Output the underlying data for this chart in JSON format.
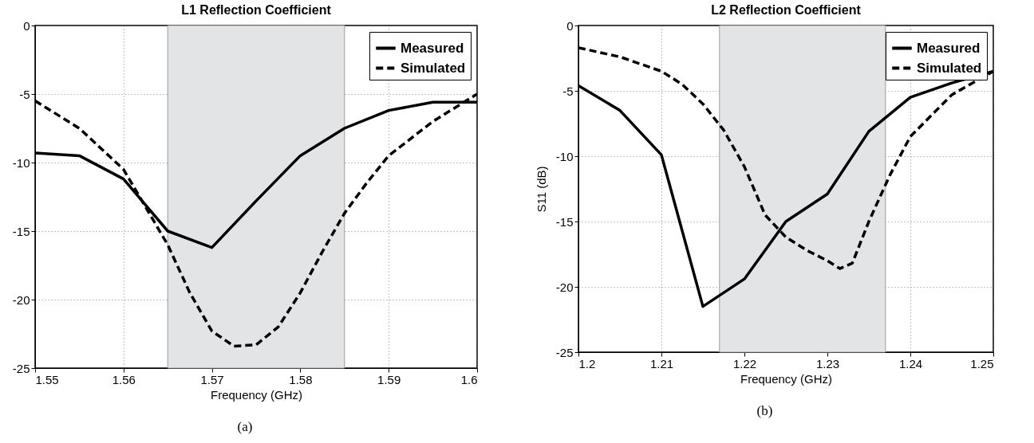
{
  "chart_data": [
    {
      "type": "line",
      "title": "L1 Reflection Coefficient",
      "xlabel": "Frequency (GHz)",
      "annotations": [
        "(a)"
      ],
      "xlim": [
        1.55,
        1.6
      ],
      "xticks": [
        1.55,
        1.56,
        1.57,
        1.58,
        1.59,
        1.6
      ],
      "ylim": [
        -25,
        0
      ],
      "yticks": [
        -25,
        -20,
        -15,
        -10,
        -5,
        0
      ],
      "grid": true,
      "legend": "top right",
      "marker": "none",
      "bands": [
        {
          "axis": "x",
          "from": 1.565,
          "to": 1.585,
          "color": "#e3e4e6"
        }
      ],
      "series": [
        {
          "name": "Measured",
          "color": "#000000",
          "line_style": "solid",
          "x": [
            1.55,
            1.555,
            1.56,
            1.565,
            1.57,
            1.575,
            1.58,
            1.585,
            1.59,
            1.595,
            1.6
          ],
          "values": [
            -9.3,
            -9.5,
            -11.2,
            -15,
            -16.2,
            -12.8,
            -9.5,
            -7.5,
            -6.2,
            -5.6,
            -5.6
          ]
        },
        {
          "name": "Simulated",
          "color": "#000000",
          "line_style": "dashed",
          "x": [
            1.55,
            1.555,
            1.56,
            1.565,
            1.5675,
            1.57,
            1.5725,
            1.575,
            1.5775,
            1.58,
            1.5825,
            1.585,
            1.5875,
            1.59,
            1.595,
            1.6
          ],
          "values": [
            -5.5,
            -7.5,
            -10.5,
            -16,
            -19.5,
            -22.3,
            -23.4,
            -23.3,
            -22,
            -19.5,
            -16.5,
            -13.7,
            -11.5,
            -9.5,
            -7,
            -5
          ]
        }
      ]
    },
    {
      "type": "line",
      "title": "L2 Reflection Coefficient",
      "xlabel": "Frequency (GHz)",
      "ylabel": "S11 (dB)",
      "annotations": [
        "(b)"
      ],
      "xlim": [
        1.2,
        1.25
      ],
      "xticks": [
        1.2,
        1.21,
        1.22,
        1.23,
        1.24,
        1.25
      ],
      "ylim": [
        -25,
        0
      ],
      "yticks": [
        -25,
        -20,
        -15,
        -10,
        -5,
        0
      ],
      "grid": true,
      "legend": "top right",
      "marker": "none",
      "bands": [
        {
          "axis": "x",
          "from": 1.217,
          "to": 1.237,
          "color": "#e3e4e6"
        }
      ],
      "series": [
        {
          "name": "Measured",
          "color": "#000000",
          "line_style": "solid",
          "x": [
            1.2,
            1.205,
            1.21,
            1.215,
            1.22,
            1.225,
            1.23,
            1.235,
            1.24,
            1.245,
            1.25
          ],
          "values": [
            -4.6,
            -6.5,
            -9.9,
            -21.5,
            -19.4,
            -15,
            -12.9,
            -8.1,
            -5.5,
            -4.4,
            -3.5
          ]
        },
        {
          "name": "Simulated",
          "color": "#000000",
          "line_style": "dashed",
          "x": [
            1.2,
            1.205,
            1.21,
            1.2125,
            1.215,
            1.2175,
            1.22,
            1.2225,
            1.225,
            1.2275,
            1.23,
            1.2315,
            1.233,
            1.235,
            1.2375,
            1.24,
            1.245,
            1.25
          ],
          "values": [
            -1.7,
            -2.4,
            -3.5,
            -4.5,
            -6,
            -8,
            -10.8,
            -14.5,
            -16.2,
            -17.2,
            -18,
            -18.6,
            -18.2,
            -15,
            -11.5,
            -8.5,
            -5.3,
            -3.5
          ]
        }
      ]
    }
  ]
}
